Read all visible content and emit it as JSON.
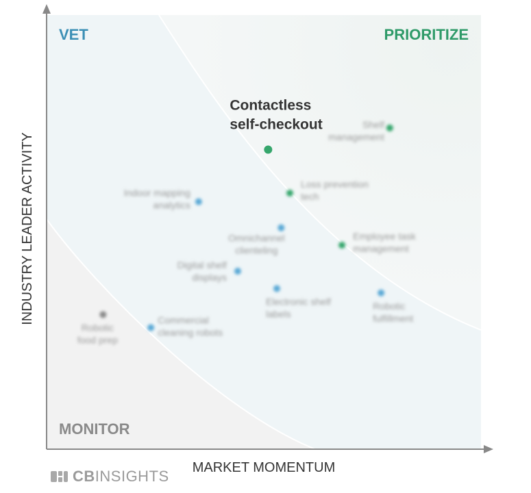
{
  "chart_data": {
    "type": "scatter",
    "xlabel": "MARKET MOMENTUM",
    "ylabel": "INDUSTRY LEADER ACTIVITY",
    "quadrants": [
      {
        "name": "VET",
        "color": "#3b8fb5",
        "position": "top-left"
      },
      {
        "name": "PRIORITIZE",
        "color": "#2e9a68",
        "position": "top-right"
      },
      {
        "name": "MONITOR",
        "color": "#8a8a8a",
        "position": "bottom-left"
      }
    ],
    "highlighted": "Contactless self-checkout",
    "points": [
      {
        "label": "Contactless self-checkout",
        "lines": [
          "Contactless",
          "self-checkout"
        ],
        "x": 0.51,
        "y": 0.69,
        "quadrant": "PRIORITIZE",
        "color": "#36a66c"
      },
      {
        "label": "Shelf management",
        "lines": [
          "Shelf",
          "management"
        ],
        "x": 0.79,
        "y": 0.74,
        "quadrant": "PRIORITIZE",
        "color": "#36a66c"
      },
      {
        "label": "Loss prevention tech",
        "lines": [
          "Loss prevention",
          "tech"
        ],
        "x": 0.56,
        "y": 0.59,
        "quadrant": "PRIORITIZE",
        "color": "#36a66c"
      },
      {
        "label": "Employee task management",
        "lines": [
          "Employee task",
          "management"
        ],
        "x": 0.68,
        "y": 0.47,
        "quadrant": "PRIORITIZE",
        "color": "#36a66c"
      },
      {
        "label": "Indoor mapping analytics",
        "lines": [
          "Indoor mapping",
          "analytics"
        ],
        "x": 0.35,
        "y": 0.57,
        "quadrant": "VET",
        "color": "#5aa9d6"
      },
      {
        "label": "Omnichannel clienteling",
        "lines": [
          "Omnichannel",
          "clienteling"
        ],
        "x": 0.54,
        "y": 0.51,
        "quadrant": "VET",
        "color": "#5aa9d6"
      },
      {
        "label": "Digital shelf displays",
        "lines": [
          "Digital shelf",
          "displays"
        ],
        "x": 0.44,
        "y": 0.41,
        "quadrant": "VET",
        "color": "#5aa9d6"
      },
      {
        "label": "Electronic shelf labels",
        "lines": [
          "Electronic shelf",
          "labels"
        ],
        "x": 0.53,
        "y": 0.37,
        "quadrant": "VET",
        "color": "#5aa9d6"
      },
      {
        "label": "Robotic fulfillment",
        "lines": [
          "Robotic",
          "fulfillment"
        ],
        "x": 0.77,
        "y": 0.36,
        "quadrant": "VET",
        "color": "#5aa9d6"
      },
      {
        "label": "Commercial cleaning robots",
        "lines": [
          "Commercial",
          "cleaning robots"
        ],
        "x": 0.24,
        "y": 0.28,
        "quadrant": "VET",
        "color": "#5aa9d6"
      },
      {
        "label": "Robotic food prep",
        "lines": [
          "Robotic",
          "food prep"
        ],
        "x": 0.13,
        "y": 0.31,
        "quadrant": "MONITOR",
        "color": "#8a8a8a"
      }
    ]
  },
  "logo": {
    "bold": "CB",
    "rest": "INSIGHTS",
    "color": "#9a9a9a"
  }
}
